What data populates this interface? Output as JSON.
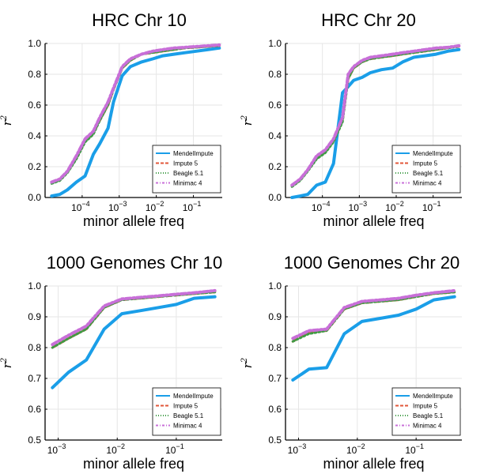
{
  "chart_data": [
    {
      "type": "line",
      "title": "HRC Chr 10",
      "xlabel": "minor allele freq",
      "ylabel": "r2",
      "xscale": "log",
      "xlim": [
        1e-05,
        0.6
      ],
      "ylim": [
        0.0,
        1.0
      ],
      "xticks": [
        {
          "base": "10",
          "exp": "−4",
          "value": 0.0001
        },
        {
          "base": "10",
          "exp": "−3",
          "value": 0.001
        },
        {
          "base": "10",
          "exp": "−2",
          "value": 0.01
        },
        {
          "base": "10",
          "exp": "−1",
          "value": 0.1
        }
      ],
      "yticks": [
        "0.0",
        "0.2",
        "0.4",
        "0.6",
        "0.8",
        "1.0"
      ],
      "ytick_values": [
        0.0,
        0.2,
        0.4,
        0.6,
        0.8,
        1.0
      ],
      "grid": true,
      "legend_position": "bottom-right",
      "x": [
        1.5e-05,
        2.5e-05,
        4e-05,
        7e-05,
        0.00012,
        0.0002,
        0.0003,
        0.0005,
        0.0007,
        0.0012,
        0.002,
        0.004,
        0.008,
        0.015,
        0.03,
        0.06,
        0.12,
        0.25,
        0.5
      ],
      "series": [
        {
          "name": "MendelImpute",
          "color": "#1a9ee8",
          "dash": "",
          "width": 4,
          "values": [
            0.01,
            0.02,
            0.05,
            0.1,
            0.14,
            0.28,
            0.35,
            0.45,
            0.62,
            0.79,
            0.85,
            0.88,
            0.9,
            0.92,
            0.93,
            0.94,
            0.95,
            0.96,
            0.97
          ]
        },
        {
          "name": "Impute 5",
          "color": "#e1573a",
          "dash": "7,4",
          "width": 3,
          "values": [
            0.1,
            0.12,
            0.17,
            0.26,
            0.37,
            0.42,
            0.5,
            0.6,
            0.7,
            0.84,
            0.89,
            0.93,
            0.94,
            0.95,
            0.96,
            0.97,
            0.975,
            0.98,
            0.985
          ]
        },
        {
          "name": "Beagle 5.1",
          "color": "#3e9b45",
          "dash": "2,3",
          "width": 3,
          "values": [
            0.09,
            0.11,
            0.16,
            0.25,
            0.36,
            0.41,
            0.5,
            0.6,
            0.7,
            0.84,
            0.89,
            0.93,
            0.94,
            0.95,
            0.96,
            0.97,
            0.975,
            0.98,
            0.985
          ]
        },
        {
          "name": "Minimac 4",
          "color": "#c86fd8",
          "dash": "6,3,2,3",
          "width": 4,
          "values": [
            0.1,
            0.12,
            0.17,
            0.27,
            0.38,
            0.43,
            0.52,
            0.62,
            0.71,
            0.85,
            0.9,
            0.93,
            0.95,
            0.96,
            0.97,
            0.975,
            0.98,
            0.985,
            0.99
          ]
        }
      ]
    },
    {
      "type": "line",
      "title": "HRC Chr 20",
      "xlabel": "minor allele freq",
      "ylabel": "r2",
      "xscale": "log",
      "xlim": [
        1e-05,
        0.6
      ],
      "ylim": [
        0.0,
        1.0
      ],
      "xticks": [
        {
          "base": "10",
          "exp": "−4",
          "value": 0.0001
        },
        {
          "base": "10",
          "exp": "−3",
          "value": 0.001
        },
        {
          "base": "10",
          "exp": "−2",
          "value": 0.01
        },
        {
          "base": "10",
          "exp": "−1",
          "value": 0.1
        }
      ],
      "yticks": [
        "0.0",
        "0.2",
        "0.4",
        "0.6",
        "0.8",
        "1.0"
      ],
      "ytick_values": [
        0.0,
        0.2,
        0.4,
        0.6,
        0.8,
        1.0
      ],
      "grid": true,
      "legend_position": "bottom-right",
      "x": [
        1.5e-05,
        2.5e-05,
        4e-05,
        7e-05,
        0.00012,
        0.0002,
        0.00035,
        0.0005,
        0.0007,
        0.0012,
        0.002,
        0.004,
        0.008,
        0.015,
        0.03,
        0.06,
        0.12,
        0.25,
        0.5
      ],
      "series": [
        {
          "name": "MendelImpute",
          "color": "#1a9ee8",
          "dash": "",
          "width": 4,
          "values": [
            0.0,
            0.01,
            0.02,
            0.08,
            0.1,
            0.22,
            0.68,
            0.72,
            0.76,
            0.78,
            0.81,
            0.83,
            0.84,
            0.88,
            0.91,
            0.92,
            0.93,
            0.95,
            0.96
          ]
        },
        {
          "name": "Impute 5",
          "color": "#e1573a",
          "dash": "7,4",
          "width": 3,
          "values": [
            0.08,
            0.12,
            0.18,
            0.26,
            0.3,
            0.37,
            0.5,
            0.77,
            0.84,
            0.88,
            0.9,
            0.91,
            0.92,
            0.93,
            0.94,
            0.95,
            0.96,
            0.97,
            0.98
          ]
        },
        {
          "name": "Beagle 5.1",
          "color": "#3e9b45",
          "dash": "2,3",
          "width": 3,
          "values": [
            0.07,
            0.11,
            0.17,
            0.25,
            0.29,
            0.36,
            0.49,
            0.77,
            0.84,
            0.88,
            0.9,
            0.91,
            0.92,
            0.93,
            0.94,
            0.95,
            0.96,
            0.97,
            0.98
          ]
        },
        {
          "name": "Minimac 4",
          "color": "#c86fd8",
          "dash": "6,3,2,3",
          "width": 4,
          "values": [
            0.08,
            0.12,
            0.18,
            0.27,
            0.31,
            0.38,
            0.52,
            0.8,
            0.85,
            0.89,
            0.91,
            0.92,
            0.93,
            0.94,
            0.95,
            0.96,
            0.97,
            0.975,
            0.985
          ]
        }
      ]
    },
    {
      "type": "line",
      "title": "1000 Genomes Chr 10",
      "xlabel": "minor allele freq",
      "ylabel": "r2",
      "xscale": "log",
      "xlim": [
        0.0006,
        0.6
      ],
      "ylim": [
        0.5,
        1.0
      ],
      "xticks": [
        {
          "base": "10",
          "exp": "−3",
          "value": 0.001
        },
        {
          "base": "10",
          "exp": "−2",
          "value": 0.01
        },
        {
          "base": "10",
          "exp": "−1",
          "value": 0.1
        }
      ],
      "yticks": [
        "0.5",
        "0.6",
        "0.7",
        "0.8",
        "0.9",
        "1.0"
      ],
      "ytick_values": [
        0.5,
        0.6,
        0.7,
        0.8,
        0.9,
        1.0
      ],
      "grid": true,
      "legend_position": "bottom-right",
      "x": [
        0.0008,
        0.0015,
        0.003,
        0.006,
        0.012,
        0.025,
        0.05,
        0.1,
        0.2,
        0.45
      ],
      "series": [
        {
          "name": "MendelImpute",
          "color": "#1a9ee8",
          "dash": "",
          "width": 4,
          "values": [
            0.67,
            0.72,
            0.76,
            0.86,
            0.91,
            0.92,
            0.93,
            0.94,
            0.96,
            0.965
          ]
        },
        {
          "name": "Impute 5",
          "color": "#e1573a",
          "dash": "7,4",
          "width": 3,
          "values": [
            0.8,
            0.83,
            0.86,
            0.93,
            0.955,
            0.96,
            0.965,
            0.97,
            0.975,
            0.98
          ]
        },
        {
          "name": "Beagle 5.1",
          "color": "#3e9b45",
          "dash": "2,3",
          "width": 3,
          "values": [
            0.8,
            0.83,
            0.86,
            0.93,
            0.955,
            0.96,
            0.965,
            0.97,
            0.975,
            0.98
          ]
        },
        {
          "name": "Minimac 4",
          "color": "#c86fd8",
          "dash": "6,3,2,3",
          "width": 4,
          "values": [
            0.81,
            0.84,
            0.87,
            0.935,
            0.958,
            0.963,
            0.968,
            0.973,
            0.978,
            0.985
          ]
        }
      ]
    },
    {
      "type": "line",
      "title": "1000 Genomes Chr 20",
      "xlabel": "minor allele freq",
      "ylabel": "r2",
      "xscale": "log",
      "xlim": [
        0.0006,
        0.6
      ],
      "ylim": [
        0.5,
        1.0
      ],
      "xticks": [
        {
          "base": "10",
          "exp": "−3",
          "value": 0.001
        },
        {
          "base": "10",
          "exp": "−2",
          "value": 0.01
        },
        {
          "base": "10",
          "exp": "−1",
          "value": 0.1
        }
      ],
      "yticks": [
        "0.5",
        "0.6",
        "0.7",
        "0.8",
        "0.9",
        "1.0"
      ],
      "ytick_values": [
        0.5,
        0.6,
        0.7,
        0.8,
        0.9,
        1.0
      ],
      "grid": true,
      "legend_position": "bottom-right",
      "x": [
        0.0008,
        0.0015,
        0.003,
        0.006,
        0.012,
        0.025,
        0.05,
        0.1,
        0.2,
        0.45
      ],
      "series": [
        {
          "name": "MendelImpute",
          "color": "#1a9ee8",
          "dash": "",
          "width": 4,
          "values": [
            0.695,
            0.73,
            0.735,
            0.845,
            0.885,
            0.895,
            0.905,
            0.925,
            0.955,
            0.965
          ]
        },
        {
          "name": "Impute 5",
          "color": "#e1573a",
          "dash": "7,4",
          "width": 3,
          "values": [
            0.82,
            0.85,
            0.855,
            0.925,
            0.945,
            0.95,
            0.955,
            0.965,
            0.975,
            0.98
          ]
        },
        {
          "name": "Beagle 5.1",
          "color": "#3e9b45",
          "dash": "2,3",
          "width": 3,
          "values": [
            0.82,
            0.845,
            0.855,
            0.925,
            0.945,
            0.95,
            0.955,
            0.965,
            0.975,
            0.98
          ]
        },
        {
          "name": "Minimac 4",
          "color": "#c86fd8",
          "dash": "6,3,2,3",
          "width": 4,
          "values": [
            0.83,
            0.855,
            0.86,
            0.93,
            0.95,
            0.955,
            0.96,
            0.97,
            0.978,
            0.985
          ]
        }
      ]
    }
  ]
}
